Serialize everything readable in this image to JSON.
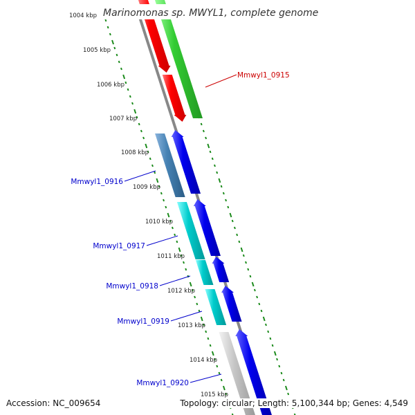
{
  "title": "Marinomonas sp. MWYL1, complete genome",
  "tick_labels": [
    "1004 kbp",
    "1005 kbp",
    "1006 kbp",
    "1007 kbp",
    "1008 kbp",
    "1009 kbp",
    "1010 kbp",
    "1011 kbp",
    "1012 kbp",
    "1013 kbp",
    "1014 kbp",
    "1015 kbp"
  ],
  "gene_labels": [
    {
      "name": "Mmwyl1_0915",
      "color": "#cc0000"
    },
    {
      "name": "Mmwyl1_0916",
      "color": "#0000cc"
    },
    {
      "name": "Mmwyl1_0917",
      "color": "#0000cc"
    },
    {
      "name": "Mmwyl1_0918",
      "color": "#0000cc"
    },
    {
      "name": "Mmwyl1_0919",
      "color": "#0000cc"
    },
    {
      "name": "Mmwyl1_0920",
      "color": "#0000cc"
    }
  ],
  "colors": {
    "backbone": "#888888",
    "tick": "#1a8a1a",
    "red": "#ff0000",
    "green": "#33cc33",
    "blue": "#0000ee",
    "steelblue": "#4682b4",
    "cyan": "#00cccc",
    "gray": "#c8c8c8"
  },
  "footer": {
    "accession": "Accession: NC_009654",
    "topology": "Topology: circular; Length: 5,100,344 bp; Genes: 4,549"
  }
}
